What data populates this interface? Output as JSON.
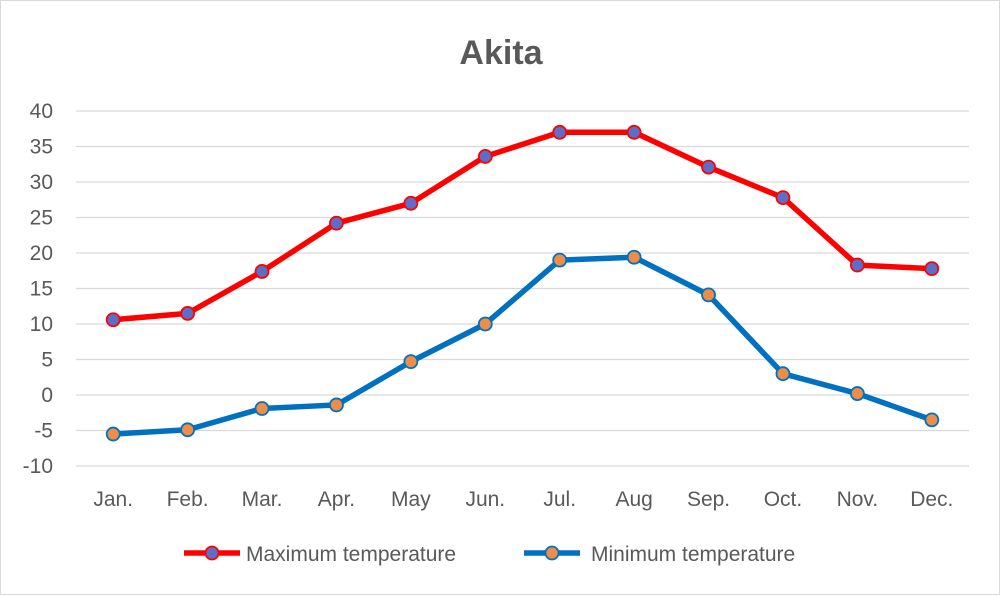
{
  "chart_data": {
    "type": "line",
    "title": "Akita",
    "xlabel": "",
    "ylabel": "",
    "categories": [
      "Jan.",
      "Feb.",
      "Mar.",
      "Apr.",
      "May",
      "Jun.",
      "Jul.",
      "Aug",
      "Sep.",
      "Oct.",
      "Nov.",
      "Dec."
    ],
    "ylim": [
      -10,
      40
    ],
    "yticks": [
      40,
      35,
      30,
      25,
      20,
      15,
      10,
      5,
      0,
      -5,
      -10
    ],
    "grid": true,
    "legend_position": "bottom",
    "series": [
      {
        "name": "Maximum temperature",
        "line_color": "#ff0000",
        "marker_color": "#5b6fc9",
        "values": [
          10.6,
          11.5,
          17.4,
          24.2,
          27.0,
          33.6,
          37.0,
          37.0,
          32.1,
          27.8,
          18.3,
          17.8
        ]
      },
      {
        "name": "Minimum temperature",
        "line_color": "#0070c0",
        "marker_color": "#ed8d48",
        "values": [
          -5.5,
          -4.9,
          -1.9,
          -1.4,
          4.7,
          10.0,
          19.0,
          19.4,
          14.1,
          3.0,
          0.2,
          -3.5
        ]
      }
    ]
  }
}
